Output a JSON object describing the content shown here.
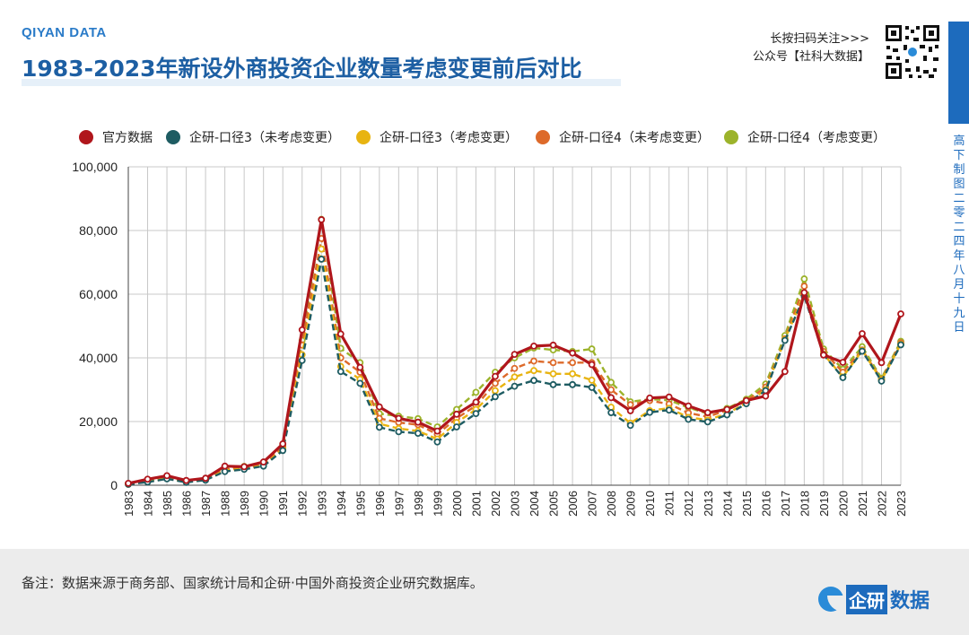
{
  "header": {
    "brand": "QIYAN DATA",
    "title": "1983-2023年新设外商投资企业数量考虑变更前后对比",
    "qr_line1": "长按扫码关注>>>",
    "qr_line2": "公众号【社科大数据】",
    "side_text": "高下制图 二零二四年八月十九日"
  },
  "footer": {
    "note": "备注：数据来源于商务部、国家统计局和企研·中国外商投资企业研究数据库。",
    "logo_box": "企研",
    "logo_text": "数据"
  },
  "colors": {
    "title": "#1d5fa3",
    "accent": "#1d6bbd"
  },
  "chart_data": {
    "type": "line",
    "x": [
      1983,
      1984,
      1985,
      1986,
      1987,
      1988,
      1989,
      1990,
      1991,
      1992,
      1993,
      1994,
      1995,
      1996,
      1997,
      1998,
      1999,
      2000,
      2001,
      2002,
      2003,
      2004,
      2005,
      2006,
      2007,
      2008,
      2009,
      2010,
      2011,
      2012,
      2013,
      2014,
      2015,
      2016,
      2017,
      2018,
      2019,
      2020,
      2021,
      2022,
      2023
    ],
    "ylim": [
      0,
      100000
    ],
    "yticks": [
      "0",
      "20,000",
      "40,000",
      "60,000",
      "80,000",
      "100,000"
    ],
    "ytick_values": [
      0,
      20000,
      40000,
      60000,
      80000,
      100000
    ],
    "grid": true,
    "legend_position": "top",
    "series": [
      {
        "name": "官方数据",
        "color": "#b0161c",
        "dash": false,
        "values": [
          600,
          1900,
          3000,
          1500,
          2200,
          6000,
          5800,
          7300,
          13000,
          48800,
          83400,
          47500,
          37000,
          24600,
          21000,
          19800,
          17000,
          22300,
          26100,
          34200,
          41100,
          43700,
          44000,
          41500,
          37900,
          27500,
          23400,
          27400,
          27700,
          24900,
          22800,
          23800,
          26600,
          28000,
          35700,
          60500,
          40900,
          38600,
          47600,
          38500,
          53800
        ]
      },
      {
        "name": "企研-口径3（未考虑变更）",
        "color": "#1e5c62",
        "dash": true,
        "values": [
          300,
          1000,
          2000,
          900,
          1600,
          4300,
          5000,
          6000,
          10900,
          39200,
          71000,
          35700,
          32000,
          18200,
          16800,
          16300,
          13600,
          18300,
          22500,
          27800,
          31100,
          32900,
          31600,
          31600,
          30700,
          22800,
          18800,
          22900,
          23600,
          20700,
          19900,
          22100,
          25600,
          29700,
          45500,
          59300,
          41000,
          33800,
          42100,
          32700,
          44100
        ]
      },
      {
        "name": "企研-口径3（考虑变更）",
        "color": "#e8b411",
        "dash": true,
        "values": [
          300,
          1200,
          2200,
          1000,
          1700,
          4600,
          5200,
          6200,
          11300,
          41000,
          74200,
          37300,
          33300,
          19300,
          17800,
          17000,
          14500,
          19700,
          23800,
          29700,
          34000,
          36000,
          35000,
          35000,
          33000,
          24500,
          19500,
          23400,
          24200,
          21300,
          20500,
          22500,
          25800,
          30000,
          45800,
          60000,
          41200,
          34000,
          42300,
          33000,
          44300
        ]
      },
      {
        "name": "企研-口径4（未考虑变更）",
        "color": "#dd6a2a",
        "dash": true,
        "values": [
          400,
          1300,
          2400,
          1100,
          1800,
          5000,
          5400,
          6500,
          12000,
          44000,
          77500,
          40000,
          35500,
          21000,
          19700,
          19000,
          16000,
          21000,
          25000,
          32000,
          36700,
          39000,
          38500,
          38500,
          38500,
          30000,
          25300,
          26600,
          25500,
          22700,
          21500,
          23600,
          26500,
          30800,
          46000,
          62500,
          42000,
          35500,
          42500,
          33200,
          44700
        ]
      },
      {
        "name": "企研-口径4（考虑变更）",
        "color": "#9cb32b",
        "dash": true,
        "values": [
          500,
          1500,
          2700,
          1300,
          2000,
          5400,
          5900,
          7000,
          12800,
          45500,
          83500,
          43000,
          38500,
          22500,
          21700,
          20900,
          18300,
          23800,
          29200,
          35500,
          40000,
          43100,
          42500,
          42000,
          42800,
          32300,
          26200,
          27000,
          26700,
          24400,
          22500,
          24100,
          27000,
          31800,
          47000,
          64800,
          42800,
          36400,
          43500,
          33600,
          45200
        ]
      }
    ]
  }
}
